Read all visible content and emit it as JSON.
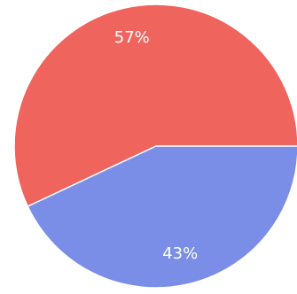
{
  "chart_data": {
    "type": "pie",
    "title": "",
    "legend": "none",
    "start_angle_deg": 0,
    "direction": "counterclockwise",
    "slices": [
      {
        "label": "57%",
        "value": 57,
        "color": "#f0645e"
      },
      {
        "label": "43%",
        "value": 43,
        "color": "#7a8ee8"
      }
    ]
  }
}
